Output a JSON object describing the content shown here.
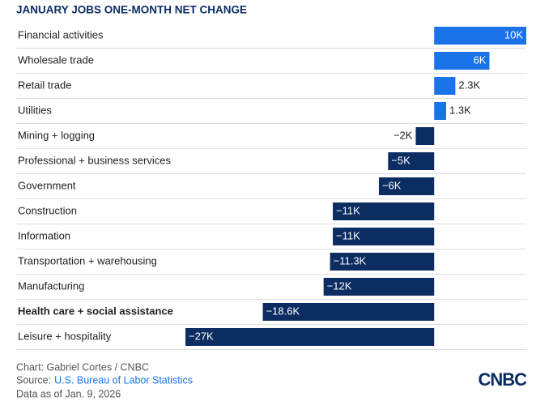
{
  "chart_data": {
    "type": "hbar",
    "title": "JANUARY JOBS ONE-MONTH NET CHANGE",
    "categories": [
      "Financial activities",
      "Wholesale trade",
      "Retail trade",
      "Utilities",
      "Mining + logging",
      "Professional + business services",
      "Government",
      "Construction",
      "Information",
      "Transportation + warehousing",
      "Manufacturing",
      "Health care + social assistance",
      "Leisure + hospitality"
    ],
    "values": [
      10,
      6,
      2.3,
      1.3,
      -2,
      -5,
      -6,
      -11,
      -11,
      -11.3,
      -12,
      -18.6,
      -27
    ],
    "value_labels": [
      "10K",
      "6K",
      "2.3K",
      "1.3K",
      "−2K",
      "−5K",
      "−6K",
      "−11K",
      "−11K",
      "−11.3K",
      "−12K",
      "−18.6K",
      "−27K"
    ],
    "positive_color": "#1a73e8",
    "negative_color": "#0c2d62",
    "highlight_index": 11,
    "xlim": [
      -27,
      10
    ]
  },
  "footer": {
    "credit": "Chart: Gabriel Cortes / CNBC",
    "source_label": "Source:",
    "source_link": "U.S. Bureau of Labor Statistics",
    "date": "Data as of Jan. 9, 2026",
    "logo": "CNBC"
  }
}
